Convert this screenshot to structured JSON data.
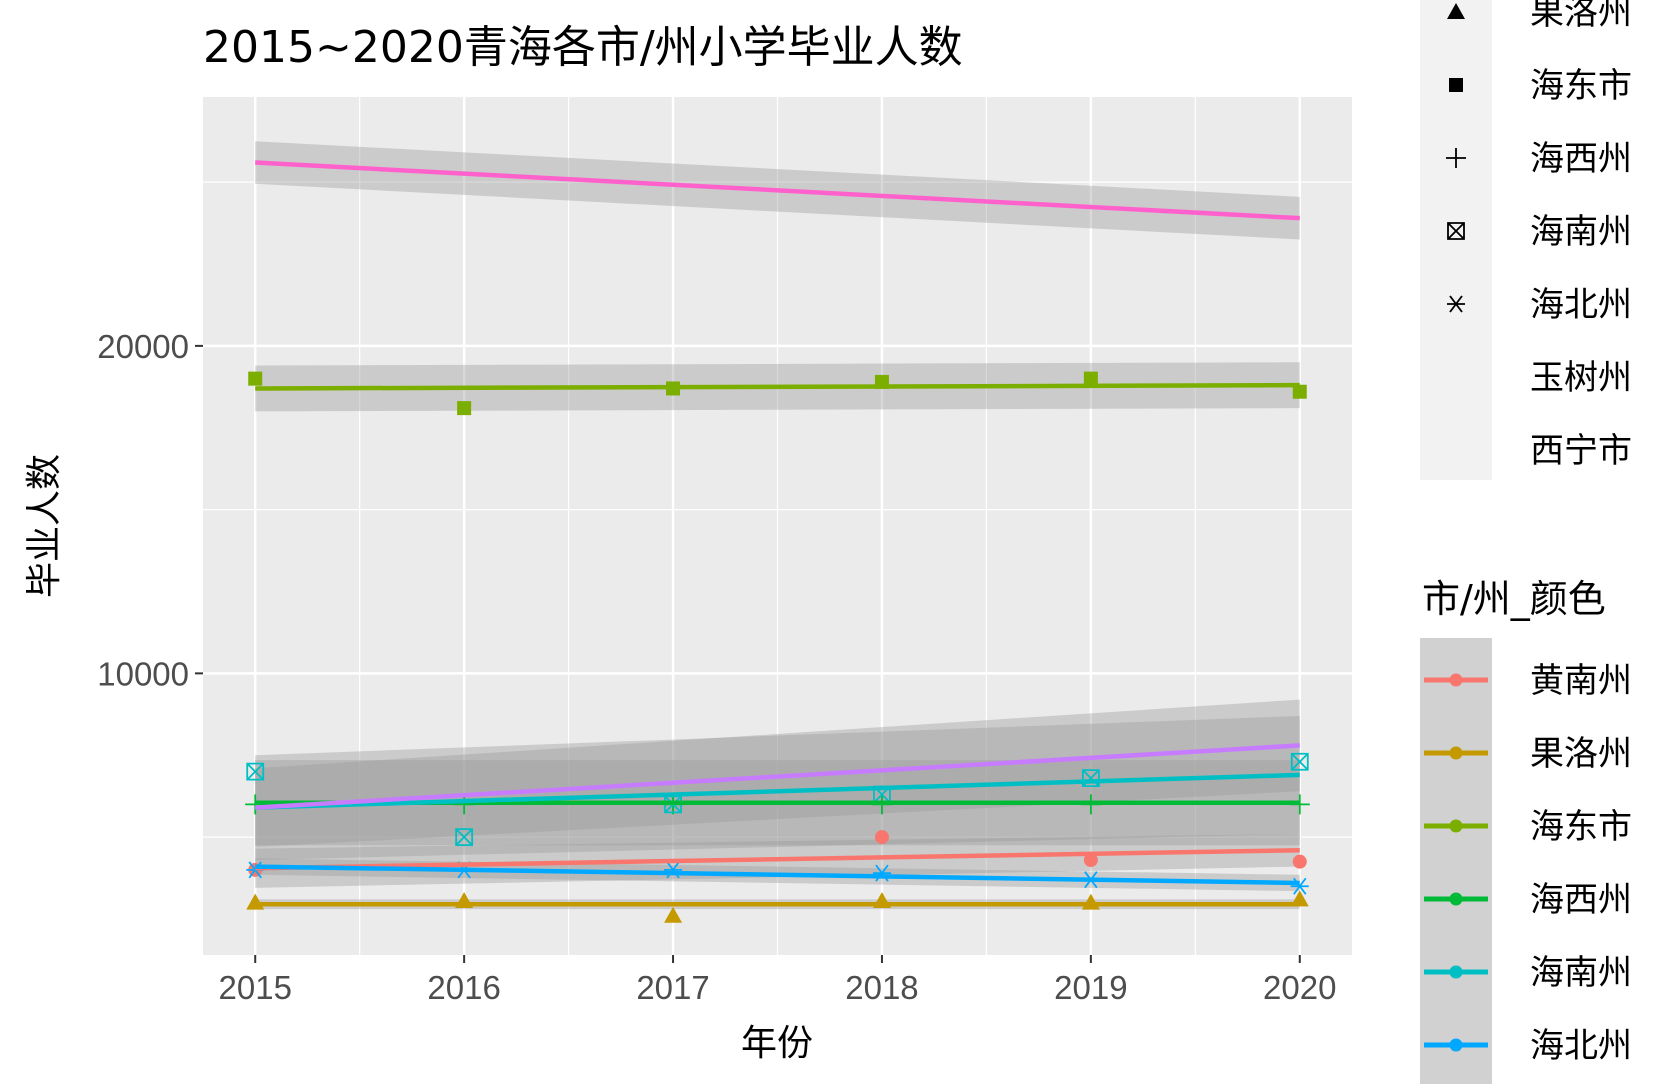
{
  "chart_data": {
    "type": "line",
    "title": "2015~2020青海各市/州小学毕业人数",
    "xlabel": "年份",
    "ylabel": "毕业人数",
    "x": [
      2015,
      2016,
      2017,
      2018,
      2019,
      2020
    ],
    "xlim": [
      2014.75,
      2020.25
    ],
    "ylim": [
      1400,
      27600
    ],
    "yticks": [
      10000,
      20000
    ],
    "grid": true,
    "legend_position": "right",
    "shape_legend": {
      "entries": [
        "果洛州",
        "海东市",
        "海西州",
        "海南州",
        "海北州",
        "玉树州",
        "西宁市"
      ]
    },
    "color_legend": {
      "title": "市/州_颜色",
      "entries": [
        "黄南州",
        "果洛州",
        "海东市",
        "海西州",
        "海南州",
        "海北州"
      ]
    },
    "series": [
      {
        "name": "黄南州",
        "color": "#F8766D",
        "shape": "circle",
        "values": [
          4000,
          null,
          null,
          5000,
          4300,
          4250
        ],
        "fit": [
          4050,
          4600
        ],
        "band": [
          600,
          500
        ]
      },
      {
        "name": "果洛州",
        "color": "#C49A00",
        "shape": "triangle",
        "values": [
          3000,
          3050,
          2600,
          3050,
          3000,
          3100
        ],
        "fit": [
          2950,
          2950
        ],
        "band": [
          150,
          150
        ]
      },
      {
        "name": "海东市",
        "color": "#7CAE00",
        "shape": "square",
        "values": [
          19000,
          18100,
          18700,
          18900,
          19000,
          18600
        ],
        "fit": [
          18700,
          18800
        ],
        "band": [
          700,
          700
        ]
      },
      {
        "name": "海西州",
        "color": "#00BA38",
        "shape": "plus",
        "values": [
          6000,
          6000,
          6000,
          6000,
          6000,
          6000
        ],
        "fit": [
          6050,
          6050
        ],
        "band": [
          1300,
          1300
        ]
      },
      {
        "name": "海南州",
        "color": "#00BFC4",
        "shape": "square-cross",
        "values": [
          7000,
          5000,
          6000,
          6300,
          6800,
          7300
        ],
        "fit": [
          5900,
          6900
        ],
        "band": [
          1600,
          1800
        ]
      },
      {
        "name": "海北州",
        "color": "#00A9FF",
        "shape": "asterisk",
        "values": [
          4000,
          4000,
          4000,
          3900,
          3700,
          3500
        ],
        "fit": [
          4100,
          3600
        ],
        "band": [
          250,
          250
        ]
      },
      {
        "name": "玉树州",
        "color": "#C77CFF",
        "shape": "none",
        "values": [
          null,
          null,
          null,
          null,
          null,
          null
        ],
        "fit": [
          5900,
          7800
        ],
        "band": [
          1200,
          1400
        ]
      },
      {
        "name": "西宁市",
        "color": "#FF61CC",
        "shape": "none",
        "values": [
          null,
          null,
          null,
          null,
          null,
          null
        ],
        "fit": [
          25600,
          23900
        ],
        "band": [
          650,
          650
        ]
      }
    ]
  }
}
